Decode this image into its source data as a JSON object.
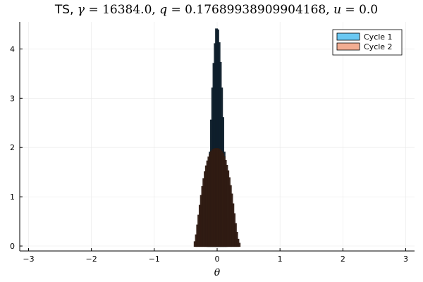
{
  "chart_data": {
    "type": "bar",
    "title": {
      "prefix": "TS, ",
      "gamma_symbol": "γ",
      "gamma_value": " = 16384.0, ",
      "q_symbol": "q",
      "q_value": " = 0.17689938909904168, ",
      "u_symbol": "u",
      "u_value": " = 0.0"
    },
    "xlabel": "θ",
    "ylabel": "",
    "xlim": [
      -3.14,
      3.14
    ],
    "ylim": [
      -0.1,
      4.55
    ],
    "xticks": [
      -3,
      -2,
      -1,
      0,
      1,
      2,
      3
    ],
    "xtick_labels": [
      "−3",
      "−2",
      "−1",
      "0",
      "1",
      "2",
      "3"
    ],
    "yticks": [
      0,
      1,
      2,
      3,
      4
    ],
    "ytick_labels": [
      "0",
      "1",
      "2",
      "3",
      "4"
    ],
    "grid": true,
    "legend_position": "top-right",
    "bin_width": 0.02,
    "series": [
      {
        "name": "Cycle 1",
        "color": "#6ac8f2",
        "edge_color": "#0e1e2a",
        "centers": [
          -0.15,
          -0.13,
          -0.11,
          -0.09,
          -0.07,
          -0.05,
          -0.03,
          -0.01,
          0.01,
          0.03,
          0.05,
          0.07,
          0.09,
          0.11,
          0.13,
          0.15
        ],
        "values": [
          0.55,
          1.15,
          1.9,
          2.55,
          3.2,
          3.7,
          4.1,
          4.4,
          4.38,
          4.12,
          3.72,
          3.2,
          2.6,
          1.9,
          1.15,
          0.55
        ]
      },
      {
        "name": "Cycle 2",
        "color": "#f2ad92",
        "edge_color": "#2e1a12",
        "centers": [
          -0.35,
          -0.33,
          -0.31,
          -0.29,
          -0.27,
          -0.25,
          -0.23,
          -0.21,
          -0.19,
          -0.17,
          -0.15,
          -0.13,
          -0.11,
          -0.09,
          -0.07,
          -0.05,
          -0.03,
          -0.01,
          0.01,
          0.03,
          0.05,
          0.07,
          0.09,
          0.11,
          0.13,
          0.15,
          0.17,
          0.19,
          0.21,
          0.23,
          0.25,
          0.27,
          0.29,
          0.31,
          0.33,
          0.35
        ],
        "values": [
          0.08,
          0.22,
          0.42,
          0.62,
          0.82,
          1.02,
          1.2,
          1.36,
          1.5,
          1.62,
          1.72,
          1.8,
          1.86,
          1.91,
          1.94,
          1.96,
          1.97,
          1.97,
          1.97,
          1.96,
          1.94,
          1.91,
          1.87,
          1.81,
          1.73,
          1.63,
          1.52,
          1.38,
          1.22,
          1.05,
          0.85,
          0.65,
          0.45,
          0.27,
          0.13,
          0.05
        ]
      }
    ]
  }
}
